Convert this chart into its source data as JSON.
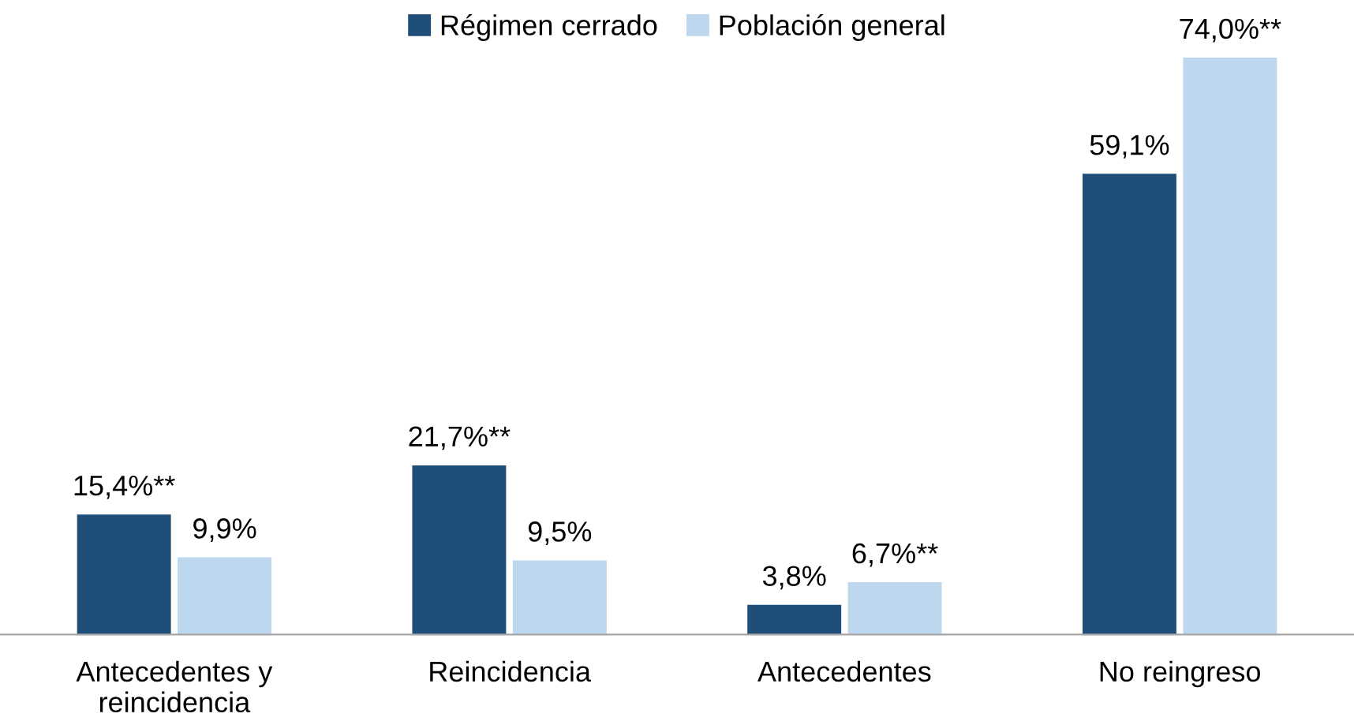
{
  "chart_data": {
    "type": "bar",
    "categories": [
      "Antecedentes y\nreincidencia",
      "Reincidencia",
      "Antecedentes",
      "No reingreso"
    ],
    "series": [
      {
        "name": "Régimen cerrado",
        "color": "#1f4e79",
        "values": [
          15.4,
          21.7,
          3.8,
          59.1
        ],
        "value_labels": [
          "15,4%**",
          "21,7%**",
          "3,8%",
          "59,1%"
        ]
      },
      {
        "name": "Población general",
        "color": "#bdd7ee",
        "values": [
          9.9,
          9.5,
          6.7,
          74.0
        ],
        "value_labels": [
          "9,9%",
          "9,5%",
          "6,7%**",
          "74,0%**"
        ]
      }
    ],
    "legend": "top",
    "grid": false
  }
}
